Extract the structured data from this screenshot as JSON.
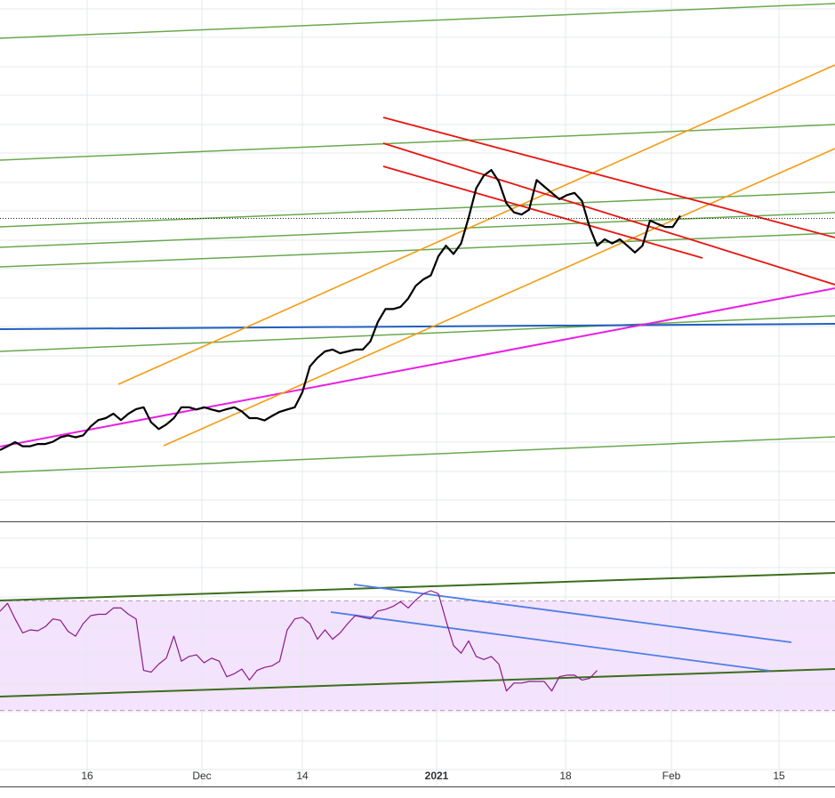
{
  "chart_data": [
    {
      "type": "line",
      "panel": "price",
      "x_labels": [
        "16",
        "Dec",
        "14",
        "2021",
        "18",
        "Feb",
        "15"
      ],
      "x_labels_bold": [
        "2021"
      ],
      "grid": true,
      "colors": {
        "price": "#000000",
        "support_resistance": "#6aa84f",
        "channel_up": "#f39c12",
        "channel_down": "#e8150f",
        "trend_support": "#e91ee4",
        "horizontal_level": "#1f5fbf"
      },
      "price_series": [
        [
          0.0,
          62.1
        ],
        [
          0.4,
          63.1
        ],
        [
          0.8,
          64.2
        ],
        [
          1.2,
          63.1
        ],
        [
          1.6,
          63.1
        ],
        [
          2.0,
          63.7
        ],
        [
          2.4,
          63.7
        ],
        [
          2.8,
          64.3
        ],
        [
          3.2,
          65.5
        ],
        [
          3.6,
          66.0
        ],
        [
          4.0,
          65.5
        ],
        [
          4.4,
          66.0
        ],
        [
          4.8,
          68.4
        ],
        [
          5.2,
          70.1
        ],
        [
          5.6,
          70.6
        ],
        [
          6.0,
          71.8
        ],
        [
          6.4,
          70.1
        ],
        [
          6.8,
          71.8
        ],
        [
          7.2,
          73.0
        ],
        [
          7.6,
          73.5
        ],
        [
          8.0,
          69.5
        ],
        [
          8.4,
          67.7
        ],
        [
          8.8,
          68.9
        ],
        [
          9.2,
          70.6
        ],
        [
          9.6,
          73.5
        ],
        [
          10.0,
          73.5
        ],
        [
          10.4,
          72.9
        ],
        [
          10.8,
          73.5
        ],
        [
          11.2,
          72.9
        ],
        [
          11.6,
          72.4
        ],
        [
          12.0,
          73.0
        ],
        [
          12.4,
          73.5
        ],
        [
          12.8,
          72.4
        ],
        [
          13.2,
          70.6
        ],
        [
          13.6,
          70.6
        ],
        [
          14.0,
          70.0
        ],
        [
          14.4,
          71.2
        ],
        [
          14.8,
          72.3
        ],
        [
          15.2,
          72.9
        ],
        [
          15.6,
          73.5
        ],
        [
          16.0,
          77.5
        ],
        [
          16.4,
          84.4
        ],
        [
          16.8,
          86.7
        ],
        [
          17.2,
          88.4
        ],
        [
          17.6,
          88.9
        ],
        [
          18.0,
          87.9
        ],
        [
          18.4,
          88.4
        ],
        [
          18.8,
          88.9
        ],
        [
          19.2,
          88.9
        ],
        [
          19.6,
          91.1
        ],
        [
          20.0,
          96.3
        ],
        [
          20.4,
          99.7
        ],
        [
          20.8,
          99.7
        ],
        [
          21.2,
          100.3
        ],
        [
          21.6,
          102.5
        ],
        [
          22.0,
          105.9
        ],
        [
          22.4,
          107.6
        ],
        [
          22.8,
          108.7
        ],
        [
          23.2,
          113.8
        ],
        [
          23.6,
          116.6
        ],
        [
          24.0,
          114.4
        ],
        [
          24.4,
          117.2
        ],
        [
          24.8,
          124.1
        ],
        [
          25.2,
          131.9
        ],
        [
          25.6,
          135.3
        ],
        [
          26.0,
          136.8
        ],
        [
          26.4,
          133.7
        ],
        [
          26.8,
          127.9
        ],
        [
          27.2,
          125.5
        ],
        [
          27.6,
          124.9
        ],
        [
          28.0,
          126.2
        ],
        [
          28.4,
          134.1
        ],
        [
          28.8,
          132.4
        ],
        [
          29.2,
          130.7
        ],
        [
          29.6,
          129.0
        ],
        [
          30.0,
          130.1
        ],
        [
          30.4,
          130.7
        ],
        [
          30.8,
          128.5
        ],
        [
          31.2,
          121.6
        ],
        [
          31.6,
          116.6
        ],
        [
          32.0,
          118.3
        ],
        [
          32.4,
          117.2
        ],
        [
          32.8,
          118.3
        ],
        [
          33.2,
          116.6
        ],
        [
          33.6,
          114.8
        ],
        [
          34.0,
          116.6
        ],
        [
          34.4,
          123.3
        ],
        [
          34.8,
          122.4
        ],
        [
          35.2,
          121.6
        ],
        [
          35.6,
          121.6
        ],
        [
          36.0,
          124.6
        ]
      ]
    },
    {
      "type": "line",
      "panel": "oscillator",
      "grid": true,
      "colors": {
        "oscillator": "#8b1a8b",
        "band_fill": "#f3e3fc",
        "band_border": "#b998b9",
        "channel": "#4f7ee5",
        "trend": "#3c6e1e"
      },
      "oscillator_series": [
        [
          0.0,
          66.2
        ],
        [
          0.4,
          69.1
        ],
        [
          0.8,
          63.4
        ],
        [
          1.2,
          58.3
        ],
        [
          1.6,
          59.4
        ],
        [
          2.0,
          59.1
        ],
        [
          2.4,
          60.6
        ],
        [
          2.8,
          63.4
        ],
        [
          3.2,
          62.9
        ],
        [
          3.6,
          58.9
        ],
        [
          4.0,
          57.1
        ],
        [
          4.4,
          61.7
        ],
        [
          4.8,
          64.6
        ],
        [
          5.2,
          65.1
        ],
        [
          5.6,
          65.1
        ],
        [
          6.0,
          67.4
        ],
        [
          6.4,
          67.4
        ],
        [
          6.8,
          65.1
        ],
        [
          7.2,
          63.4
        ],
        [
          7.6,
          44.6
        ],
        [
          8.0,
          44.0
        ],
        [
          8.4,
          46.9
        ],
        [
          8.8,
          49.1
        ],
        [
          9.2,
          57.1
        ],
        [
          9.6,
          48.0
        ],
        [
          10.0,
          49.7
        ],
        [
          10.4,
          50.3
        ],
        [
          10.8,
          47.4
        ],
        [
          11.2,
          49.1
        ],
        [
          11.6,
          48.0
        ],
        [
          12.0,
          42.3
        ],
        [
          12.4,
          43.4
        ],
        [
          12.8,
          45.1
        ],
        [
          13.2,
          41.1
        ],
        [
          13.6,
          44.6
        ],
        [
          14.0,
          45.7
        ],
        [
          14.4,
          46.3
        ],
        [
          14.8,
          48.0
        ],
        [
          15.2,
          59.4
        ],
        [
          15.6,
          63.4
        ],
        [
          16.0,
          64.0
        ],
        [
          16.4,
          61.7
        ],
        [
          16.8,
          56.0
        ],
        [
          17.2,
          59.4
        ],
        [
          17.6,
          56.0
        ],
        [
          18.0,
          58.3
        ],
        [
          18.4,
          61.7
        ],
        [
          18.8,
          64.6
        ],
        [
          19.2,
          64.0
        ],
        [
          19.6,
          63.4
        ],
        [
          20.0,
          66.3
        ],
        [
          20.4,
          66.9
        ],
        [
          20.8,
          68.0
        ],
        [
          21.2,
          69.7
        ],
        [
          21.6,
          67.4
        ],
        [
          22.0,
          70.3
        ],
        [
          22.4,
          72.6
        ],
        [
          22.8,
          73.7
        ],
        [
          23.2,
          72.6
        ],
        [
          23.6,
          62.9
        ],
        [
          24.0,
          53.7
        ],
        [
          24.4,
          50.9
        ],
        [
          24.8,
          55.4
        ],
        [
          25.2,
          49.7
        ],
        [
          25.6,
          48.6
        ],
        [
          26.0,
          49.7
        ],
        [
          26.4,
          46.9
        ],
        [
          26.8,
          37.1
        ],
        [
          27.2,
          40.0
        ],
        [
          27.6,
          40.0
        ],
        [
          28.0,
          40.6
        ],
        [
          28.4,
          40.6
        ],
        [
          28.8,
          40.6
        ],
        [
          29.2,
          37.1
        ],
        [
          29.6,
          42.3
        ],
        [
          30.0,
          42.9
        ],
        [
          30.4,
          42.9
        ],
        [
          30.8,
          41.1
        ],
        [
          31.2,
          41.7
        ],
        [
          31.6,
          44.6
        ]
      ]
    }
  ]
}
